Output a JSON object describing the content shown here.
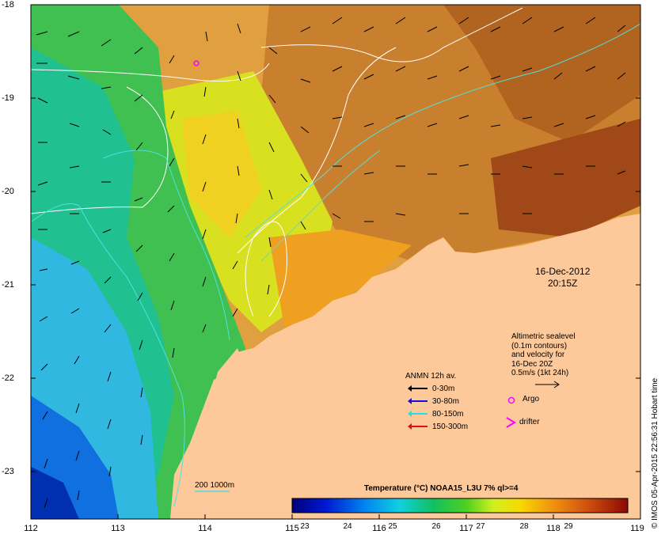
{
  "map": {
    "axes": {
      "lon_ticks": [
        "112",
        "113",
        "114",
        "115",
        "116",
        "117",
        "118",
        "119"
      ],
      "lat_ticks": [
        "-18",
        "-19",
        "-20",
        "-21",
        "-22",
        "-23"
      ]
    },
    "date_label": "16-Dec-2012",
    "time_label": "20:15Z",
    "altimetric_note": [
      "Altimetric sealevel",
      "(0.1m contours)",
      "and velocity for",
      "16-Dec 20Z",
      "0.5m/s (1kt 24h)"
    ],
    "anmn_legend": {
      "title": "ANMN 12h av.",
      "items": [
        {
          "label": "0-30m",
          "color": "#000000"
        },
        {
          "label": "30-80m",
          "color": "#1010e0"
        },
        {
          "label": "80-150m",
          "color": "#20e0e0"
        },
        {
          "label": "150-300m",
          "color": "#e01010"
        }
      ]
    },
    "argo_label": "Argo",
    "drifter_label": "drifter",
    "colorbar": {
      "title": "Temperature (°C) NOAA15_L3U 7% ql>=4",
      "ticks": [
        "23",
        "24",
        "25",
        "26",
        "27",
        "28",
        "29"
      ]
    },
    "scale_label": "200  1000m",
    "credit": "© IMOS 05-Apr-2015 22:56:31 Hobart time",
    "colors": {
      "land": "#fdc99a",
      "argo": "#ff00ff",
      "drifter": "#ff00ff",
      "contour": "#ffffff",
      "isobath": "#50e0e0"
    }
  }
}
